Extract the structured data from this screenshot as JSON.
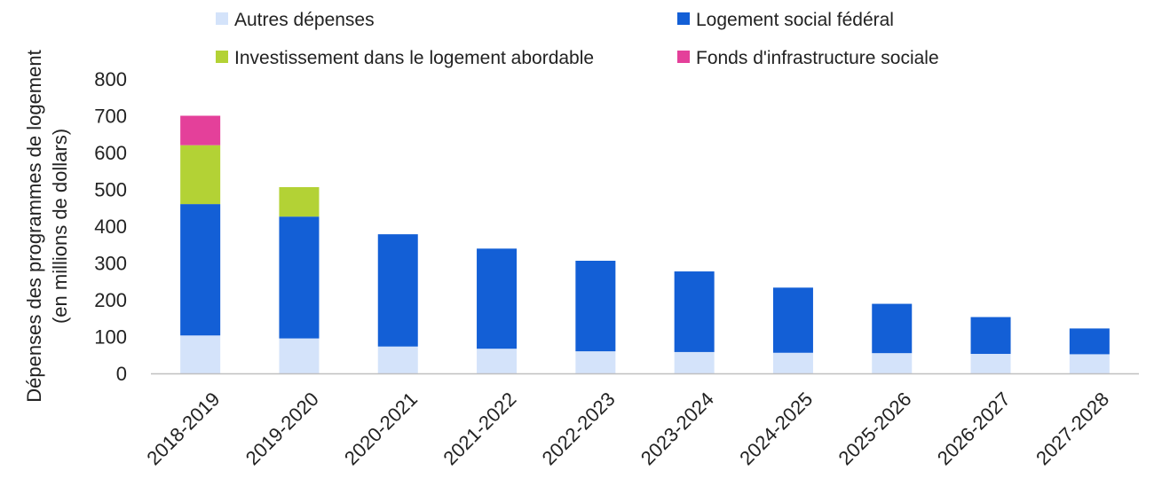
{
  "chart_data": {
    "type": "bar",
    "stacked": true,
    "ylabel_lines": [
      "Dépenses des programmes de logement",
      "(en millions de dollars)"
    ],
    "xlabel": "",
    "ylim": [
      0,
      800
    ],
    "yticks": [
      0,
      100,
      200,
      300,
      400,
      500,
      600,
      700,
      800
    ],
    "grid": false,
    "legend_position": "top",
    "categories": [
      "2018-2019",
      "2019-2020",
      "2020-2021",
      "2021-2022",
      "2022-2023",
      "2023-2024",
      "2024-2025",
      "2025-2026",
      "2026-2027",
      "2027-2028"
    ],
    "series": [
      {
        "name": "Autres dépenses",
        "color": "#d4e3fa",
        "values": [
          103,
          95,
          73,
          67,
          60,
          58,
          56,
          55,
          53,
          52
        ]
      },
      {
        "name": "Logement social fédéral",
        "color": "#135fd6",
        "values": [
          357,
          331,
          305,
          272,
          246,
          219,
          177,
          134,
          100,
          70
        ]
      },
      {
        "name": "Investissement dans le logement abordable",
        "color": "#b3d235",
        "values": [
          160,
          80,
          0,
          0,
          0,
          0,
          0,
          0,
          0,
          0
        ]
      },
      {
        "name": "Fonds d'infrastructure sociale",
        "color": "#e4409a",
        "values": [
          80,
          0,
          0,
          0,
          0,
          0,
          0,
          0,
          0,
          0
        ]
      }
    ],
    "legend_order": [
      0,
      1,
      2,
      3
    ]
  }
}
